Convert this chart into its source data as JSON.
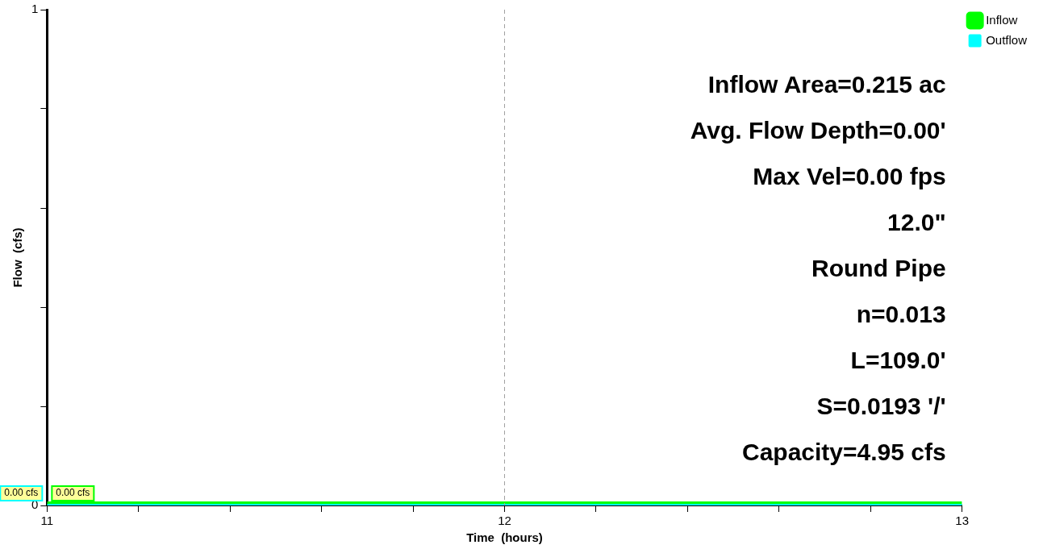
{
  "chart_data": {
    "type": "line",
    "xlabel": "Time  (hours)",
    "ylabel": "Flow  (cfs)",
    "x": [
      11,
      13
    ],
    "series": [
      {
        "name": "Inflow",
        "color": "#00ff00",
        "values": [
          0,
          0
        ],
        "value_labels": [
          "0.00 cfs",
          null
        ]
      },
      {
        "name": "Outflow",
        "color": "#00ffff",
        "values": [
          0,
          0
        ],
        "value_labels": [
          "0.00 cfs",
          null
        ]
      }
    ],
    "xlim": [
      11,
      13
    ],
    "xticks": [
      11,
      {
        "value": 11.2,
        "label": null
      },
      {
        "value": 11.4,
        "label": null
      },
      {
        "value": 11.6,
        "label": null
      },
      {
        "value": 11.8,
        "label": null
      },
      12,
      {
        "value": 12.2,
        "label": null
      },
      {
        "value": 12.4,
        "label": null
      },
      {
        "value": 12.6,
        "label": null
      },
      {
        "value": 12.8,
        "label": null
      },
      13
    ],
    "ylim": [
      0,
      1
    ],
    "yticks": [
      0,
      {
        "value": 0.2,
        "label": null
      },
      {
        "value": 0.4,
        "label": null
      },
      {
        "value": 0.6,
        "label": null
      },
      {
        "value": 0.8,
        "label": null
      },
      1
    ],
    "ref_lines": [
      {
        "axis": "x",
        "value": 12,
        "color": "#a0a0a0",
        "line_style": "dashed"
      }
    ],
    "annotations": [
      "Inflow Area=0.215 ac",
      "Avg. Flow Depth=0.00'",
      "Max Vel=0.00 fps",
      "12.0\"",
      "Round Pipe",
      "n=0.013",
      "L=109.0'",
      "S=0.0193 '/'",
      "Capacity=4.95 cfs"
    ],
    "grid": false,
    "legend": "top right",
    "marker": "none",
    "line_style": "solid"
  }
}
